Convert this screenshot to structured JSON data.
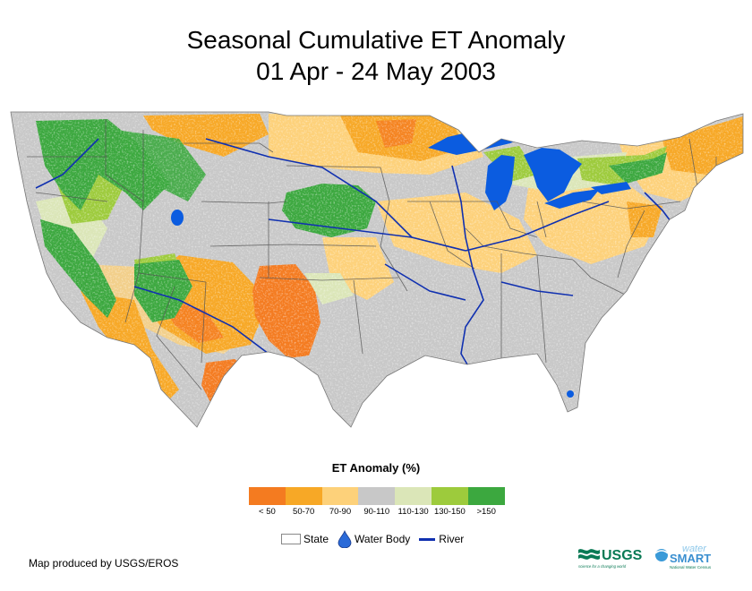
{
  "title_line1": "Seasonal Cumulative ET Anomaly",
  "title_line2": "01 Apr - 24 May 2003",
  "legend": {
    "title": "ET Anomaly (%)",
    "bins": [
      {
        "label": "< 50",
        "color": "#f47b20"
      },
      {
        "label": "50-70",
        "color": "#f7a826"
      },
      {
        "label": "70-90",
        "color": "#fdd17a"
      },
      {
        "label": "90-110",
        "color": "#c8c8c8"
      },
      {
        "label": "110-130",
        "color": "#dbe6b8"
      },
      {
        "label": "130-150",
        "color": "#9dcb3c"
      },
      {
        "label": ">150",
        "color": "#3ca83f"
      }
    ]
  },
  "keys": {
    "state": "State",
    "water": "Water Body",
    "river": "River"
  },
  "credit": "Map produced by USGS/EROS",
  "logos": {
    "usgs": "USGS",
    "usgs_tagline": "science for a changing world",
    "water": "water",
    "smart": "SMART",
    "nwc": "National Water Census"
  }
}
